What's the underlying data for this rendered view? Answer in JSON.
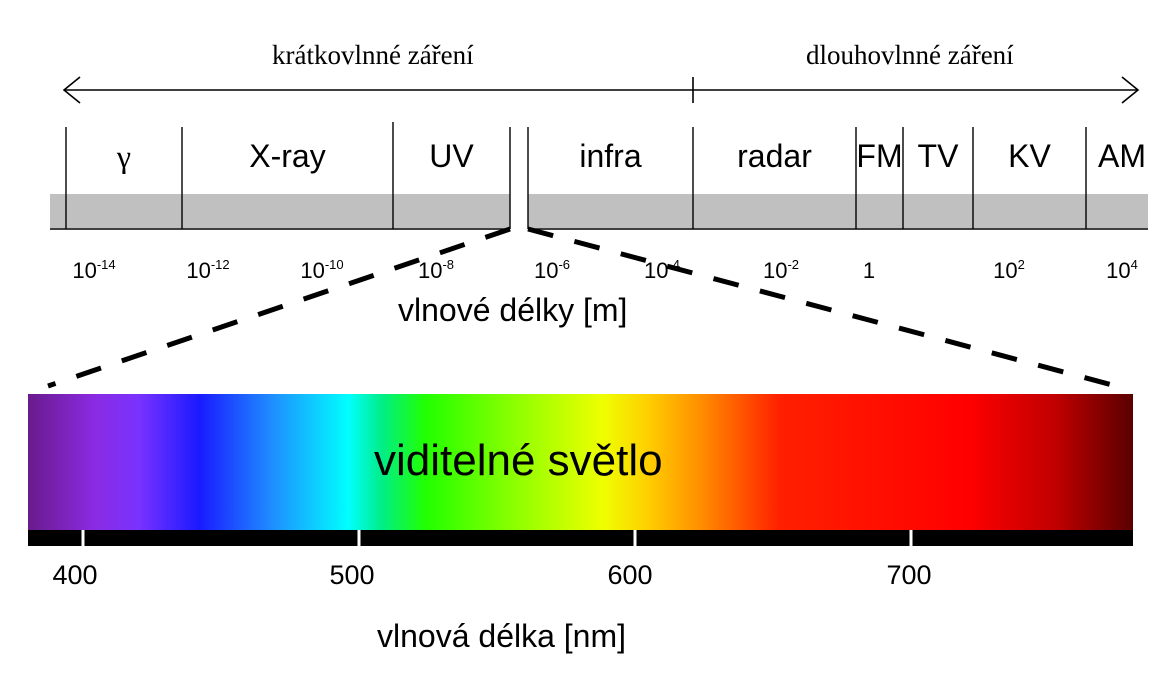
{
  "header": {
    "short_wave": "krátkovlnné záření",
    "long_wave": "dlouhovlnné záření"
  },
  "bands": [
    {
      "id": "gamma",
      "label": "γ"
    },
    {
      "id": "xray",
      "label": "X-ray"
    },
    {
      "id": "uv",
      "label": "UV"
    },
    {
      "id": "infra",
      "label": "infra"
    },
    {
      "id": "radar",
      "label": "radar"
    },
    {
      "id": "fm",
      "label": "FM"
    },
    {
      "id": "tv",
      "label": "TV"
    },
    {
      "id": "kv",
      "label": "KV"
    },
    {
      "id": "am",
      "label": "AM"
    }
  ],
  "wavelength_ticks": [
    {
      "base": "10",
      "exp": "-14"
    },
    {
      "base": "10",
      "exp": "-12"
    },
    {
      "base": "10",
      "exp": "-10"
    },
    {
      "base": "10",
      "exp": "-8"
    },
    {
      "base": "10",
      "exp": "-6"
    },
    {
      "base": "10",
      "exp": "-4"
    },
    {
      "base": "10",
      "exp": "-2"
    },
    {
      "base": "1",
      "exp": ""
    },
    {
      "base": "10",
      "exp": "2"
    },
    {
      "base": "10",
      "exp": "4"
    }
  ],
  "wavelength_axis_label": "vlnové délky [m]",
  "visible": {
    "label": "viditelné světlo",
    "axis_label": "vlnová délka [nm]",
    "ticks": [
      "400",
      "500",
      "600",
      "700"
    ]
  }
}
